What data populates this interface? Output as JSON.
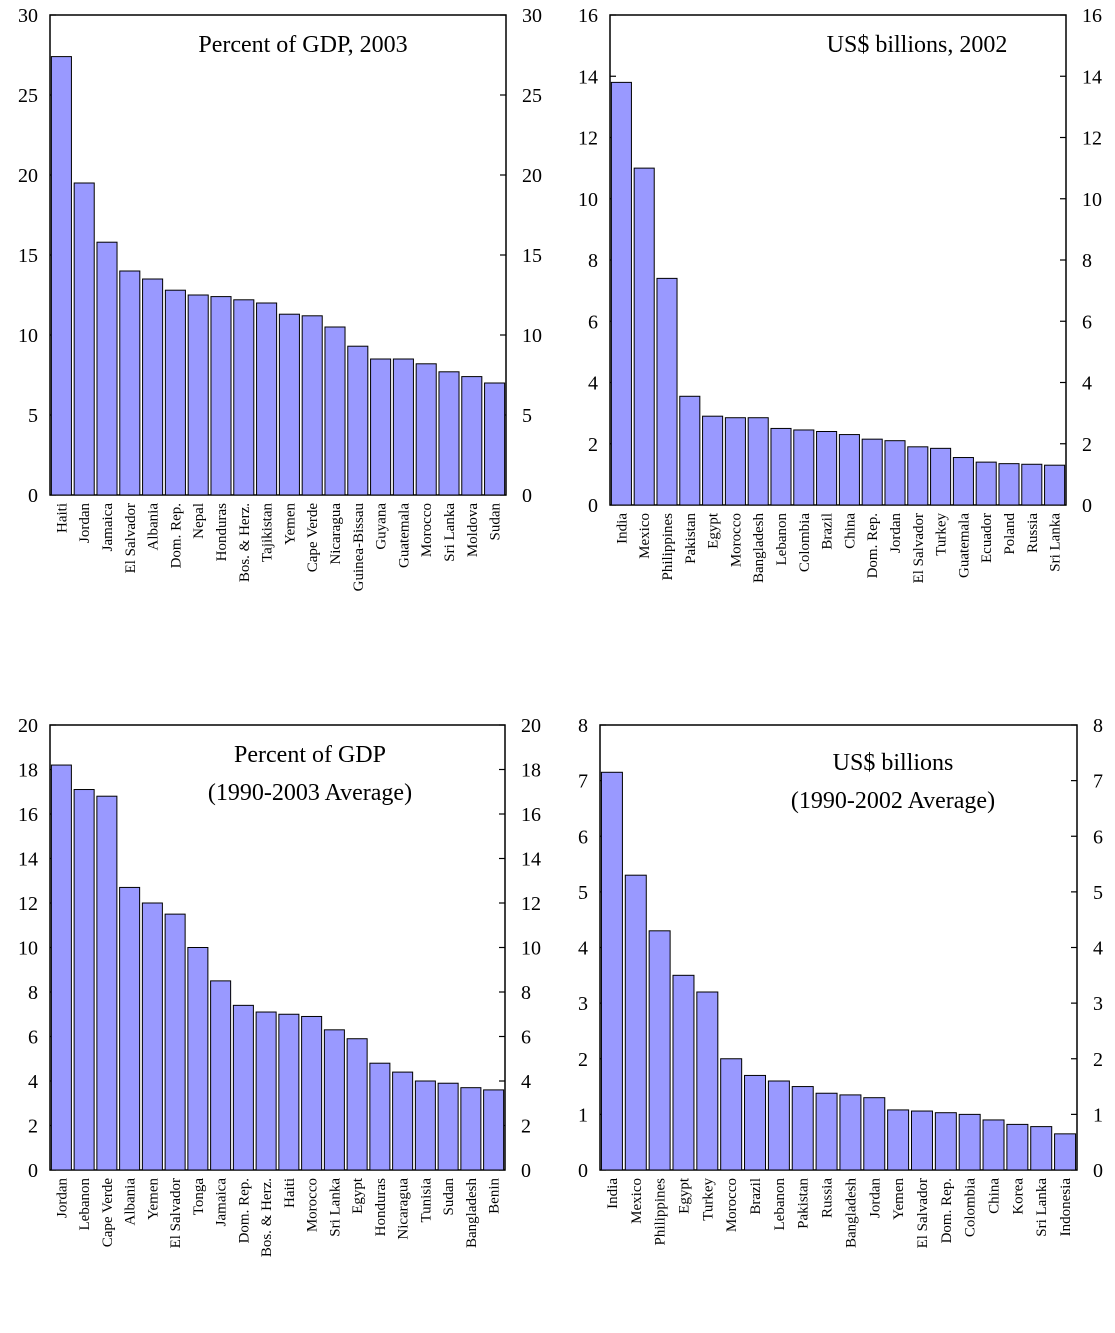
{
  "chart_data": [
    {
      "type": "bar",
      "title": "Percent of GDP, 2003",
      "subtitle": "",
      "categories": [
        "Haiti",
        "Jordan",
        "Jamaica",
        "El Salvador",
        "Albania",
        "Dom. Rep.",
        "Nepal",
        "Honduras",
        "Bos. & Herz.",
        "Tajikistan",
        "Yemen",
        "Cape Verde",
        "Nicaragua",
        "Guinea-Bissau",
        "Guyana",
        "Guatemala",
        "Morocco",
        "Sri Lanka",
        "Moldova",
        "Sudan"
      ],
      "values": [
        27.4,
        19.5,
        15.8,
        14.0,
        13.5,
        12.8,
        12.5,
        12.4,
        12.2,
        12.0,
        11.3,
        11.2,
        10.5,
        9.3,
        8.5,
        8.5,
        8.2,
        7.7,
        7.4,
        7.0
      ],
      "ylim": [
        0,
        30
      ],
      "yticks": [
        0,
        5,
        10,
        15,
        20,
        25,
        30
      ],
      "xlabel": "",
      "ylabel": "",
      "bar_color": "#9999FF",
      "grid": false,
      "legend": "none"
    },
    {
      "type": "bar",
      "title": "US$ billions, 2002",
      "subtitle": "",
      "categories": [
        "India",
        "Mexico",
        "Philippines",
        "Pakistan",
        "Egypt",
        "Morocco",
        "Bangladesh",
        "Lebanon",
        "Colombia",
        "Brazil",
        "China",
        "Dom. Rep.",
        "Jordan",
        "El Salvador",
        "Turkey",
        "Guatemala",
        "Ecuador",
        "Poland",
        "Russia",
        "Sri Lanka"
      ],
      "values": [
        13.8,
        11.0,
        7.4,
        3.55,
        2.9,
        2.85,
        2.85,
        2.5,
        2.45,
        2.4,
        2.3,
        2.15,
        2.1,
        1.9,
        1.85,
        1.55,
        1.4,
        1.35,
        1.33,
        1.3
      ],
      "ylim": [
        0,
        16
      ],
      "yticks": [
        0,
        2,
        4,
        6,
        8,
        10,
        12,
        14,
        16
      ],
      "xlabel": "",
      "ylabel": "",
      "bar_color": "#9999FF",
      "grid": false,
      "legend": "none"
    },
    {
      "type": "bar",
      "title": "Percent of GDP",
      "subtitle": "(1990-2003 Average)",
      "categories": [
        "Jordan",
        "Lebanon",
        "Cape Verde",
        "Albania",
        "Yemen",
        "El Salvador",
        "Tonga",
        "Jamaica",
        "Dom. Rep.",
        "Bos. & Herz.",
        "Haiti",
        "Morocco",
        "Sri Lanka",
        "Egypt",
        "Honduras",
        "Nicaragua",
        "Tunisia",
        "Sudan",
        "Bangladesh",
        "Benin"
      ],
      "values": [
        18.2,
        17.1,
        16.8,
        12.7,
        12.0,
        11.5,
        10.0,
        8.5,
        7.4,
        7.1,
        7.0,
        6.9,
        6.3,
        5.9,
        4.8,
        4.4,
        4.0,
        3.9,
        3.7,
        3.6
      ],
      "ylim": [
        0,
        20
      ],
      "yticks": [
        0,
        2,
        4,
        6,
        8,
        10,
        12,
        14,
        16,
        18,
        20
      ],
      "xlabel": "",
      "ylabel": "",
      "bar_color": "#9999FF",
      "grid": false,
      "legend": "none"
    },
    {
      "type": "bar",
      "title": "US$ billions",
      "subtitle": "(1990-2002 Average)",
      "categories": [
        "India",
        "Mexico",
        "Philippines",
        "Egypt",
        "Turkey",
        "Morocco",
        "Brazil",
        "Lebanon",
        "Pakistan",
        "Russia",
        "Bangladesh",
        "Jordan",
        "Yemen",
        "El Salvador",
        "Dom. Rep.",
        "Colombia",
        "China",
        "Korea",
        "Sri Lanka",
        "Indonesia"
      ],
      "values": [
        7.15,
        5.3,
        4.3,
        3.5,
        3.2,
        2.0,
        1.7,
        1.6,
        1.5,
        1.38,
        1.35,
        1.3,
        1.08,
        1.06,
        1.03,
        1.0,
        0.9,
        0.82,
        0.78,
        0.65
      ],
      "ylim": [
        0,
        8
      ],
      "yticks": [
        0,
        1,
        2,
        3,
        4,
        5,
        6,
        7,
        8
      ],
      "xlabel": "",
      "ylabel": "",
      "bar_color": "#9999FF",
      "grid": false,
      "legend": "none"
    }
  ]
}
